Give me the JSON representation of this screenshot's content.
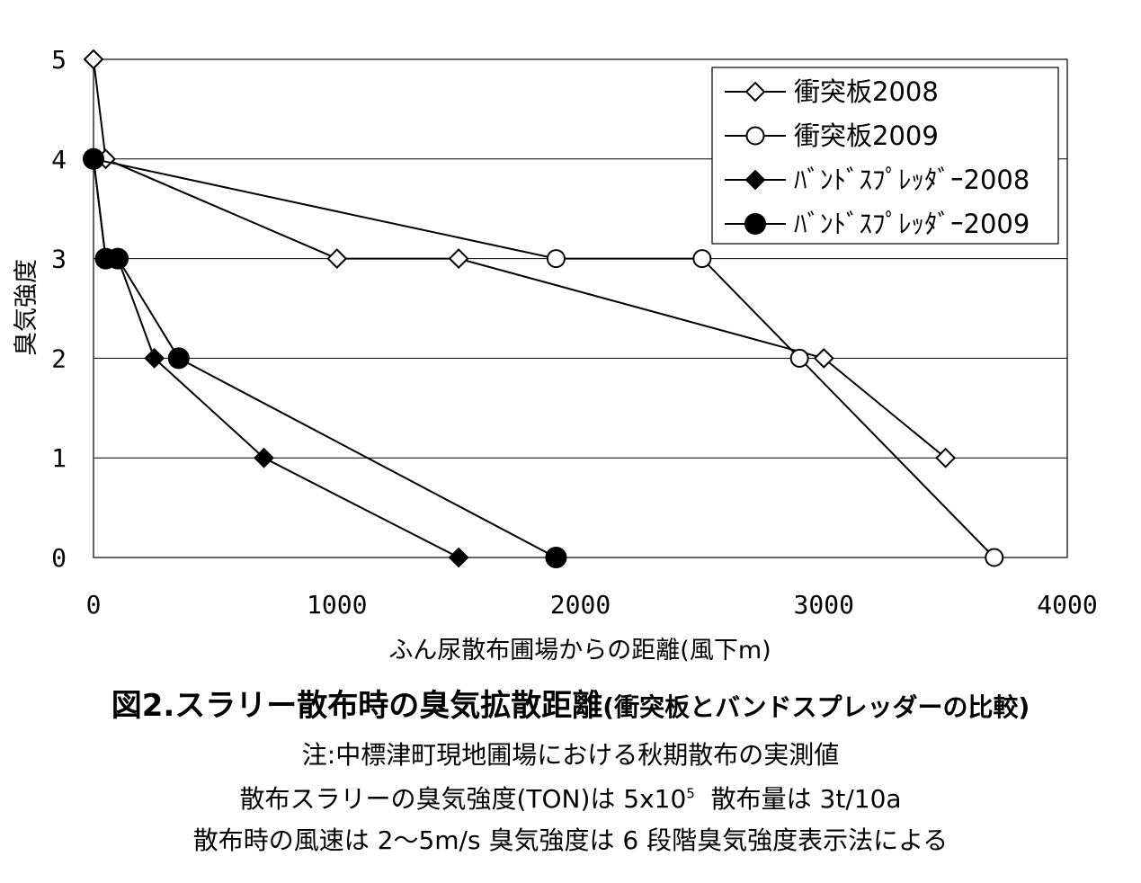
{
  "chart_data": {
    "type": "line",
    "title": "",
    "xlabel": "ふん尿散布圃場からの距離(風下m)",
    "ylabel": "臭気強度",
    "xlim": [
      0,
      4000
    ],
    "ylim": [
      0,
      5
    ],
    "x_ticks": [
      "0",
      "1000",
      "2000",
      "3000",
      "4000"
    ],
    "y_ticks": [
      "0",
      "1",
      "2",
      "3",
      "4",
      "5"
    ],
    "grid": "horizontal",
    "legend_position": "top-right",
    "series": [
      {
        "name": "衝突板2008",
        "marker": "diamond-open",
        "x": [
          0,
          50,
          1000,
          1500,
          3000,
          3500
        ],
        "y": [
          5,
          4,
          3,
          3,
          2,
          1
        ]
      },
      {
        "name": "衝突板2009",
        "marker": "circle-open",
        "x": [
          0,
          1900,
          2500,
          2900,
          3700
        ],
        "y": [
          4,
          3,
          3,
          2,
          0
        ]
      },
      {
        "name": "ﾊﾞﾝﾄﾞｽﾌﾟﾚｯﾀﾞｰ2008",
        "marker": "diamond-filled",
        "x": [
          0,
          50,
          100,
          250,
          700,
          1500
        ],
        "y": [
          4,
          3,
          3,
          2,
          1,
          0
        ]
      },
      {
        "name": "ﾊﾞﾝﾄﾞｽﾌﾟﾚｯﾀﾞｰ2009",
        "marker": "circle-filled",
        "x": [
          0,
          50,
          100,
          350,
          1900
        ],
        "y": [
          4,
          3,
          3,
          2,
          0
        ]
      }
    ]
  },
  "caption": {
    "title": "図2.スラリー散布時の臭気拡散距離",
    "title_paren": "(衝突板とバンドスプレッダーの比較)",
    "note1": "注:中標津町現地圃場における秋期散布の実測値",
    "note2_pre": "散布スラリーの臭気強度(TON)は 5x10",
    "note2_sup": "5",
    "note2_post": "  散布量は 3t/10a",
    "note3": "散布時の風速は 2〜5m/s  臭気強度は 6 段階臭気強度表示法による"
  },
  "colors": {
    "line": "#000000",
    "grid": "#000000",
    "background": "#ffffff"
  }
}
